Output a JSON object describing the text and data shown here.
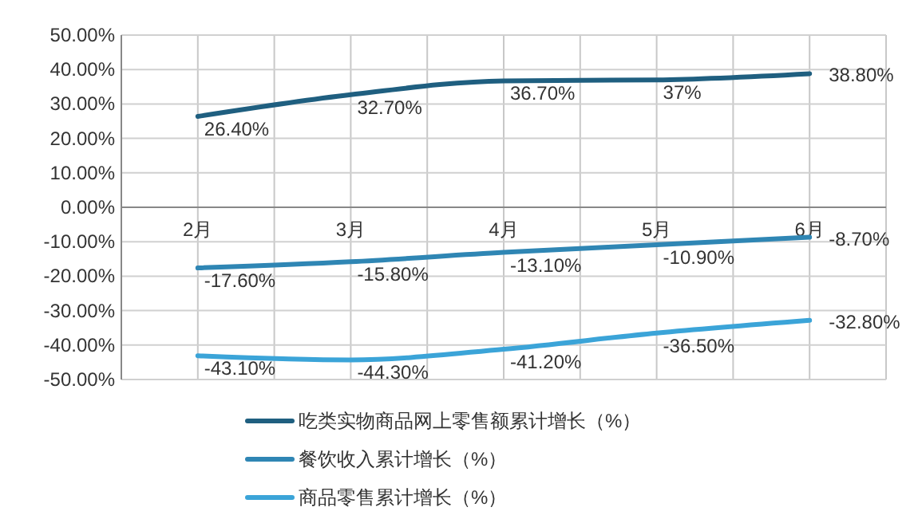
{
  "chart_data": {
    "type": "line",
    "categories": [
      "2月",
      "3月",
      "4月",
      "5月",
      "6月"
    ],
    "series": [
      {
        "name": "吃类实物商品网上零售额累计增长（%）",
        "color": "#1f5f80",
        "values": [
          26.4,
          32.7,
          36.7,
          37,
          38.8
        ],
        "value_labels": [
          "26.40%",
          "32.70%",
          "36.70%",
          "37%",
          "38.80%"
        ]
      },
      {
        "name": "餐饮收入累计增长（%）",
        "color": "#2f86b4",
        "values": [
          -17.6,
          -15.8,
          -13.1,
          -10.9,
          -8.7
        ],
        "value_labels": [
          "-17.60%",
          "-15.80%",
          "-13.10%",
          "-10.90%",
          "-8.70%"
        ]
      },
      {
        "name": "商品零售累计增长（%）",
        "color": "#3ba4d8",
        "values": [
          -43.1,
          -44.3,
          -41.2,
          -36.5,
          -32.8
        ],
        "value_labels": [
          "-43.10%",
          "-44.30%",
          "-41.20%",
          "-36.50%",
          "-32.80%"
        ]
      }
    ],
    "ylim": [
      -50,
      50
    ],
    "yticks": [
      {
        "value": -50,
        "label": "-50.00%"
      },
      {
        "value": -40,
        "label": "-40.00%"
      },
      {
        "value": -30,
        "label": "-30.00%"
      },
      {
        "value": -20,
        "label": "-20.00%"
      },
      {
        "value": -10,
        "label": "-10.00%"
      },
      {
        "value": 0,
        "label": "0.00%"
      },
      {
        "value": 10,
        "label": "10.00%"
      },
      {
        "value": 20,
        "label": "20.00%"
      },
      {
        "value": 30,
        "label": "30.00%"
      },
      {
        "value": 40,
        "label": "40.00%"
      },
      {
        "value": 50,
        "label": "50.00%"
      }
    ],
    "grid": true,
    "legend": "bottom",
    "marker": "none",
    "line_style": "solid"
  }
}
